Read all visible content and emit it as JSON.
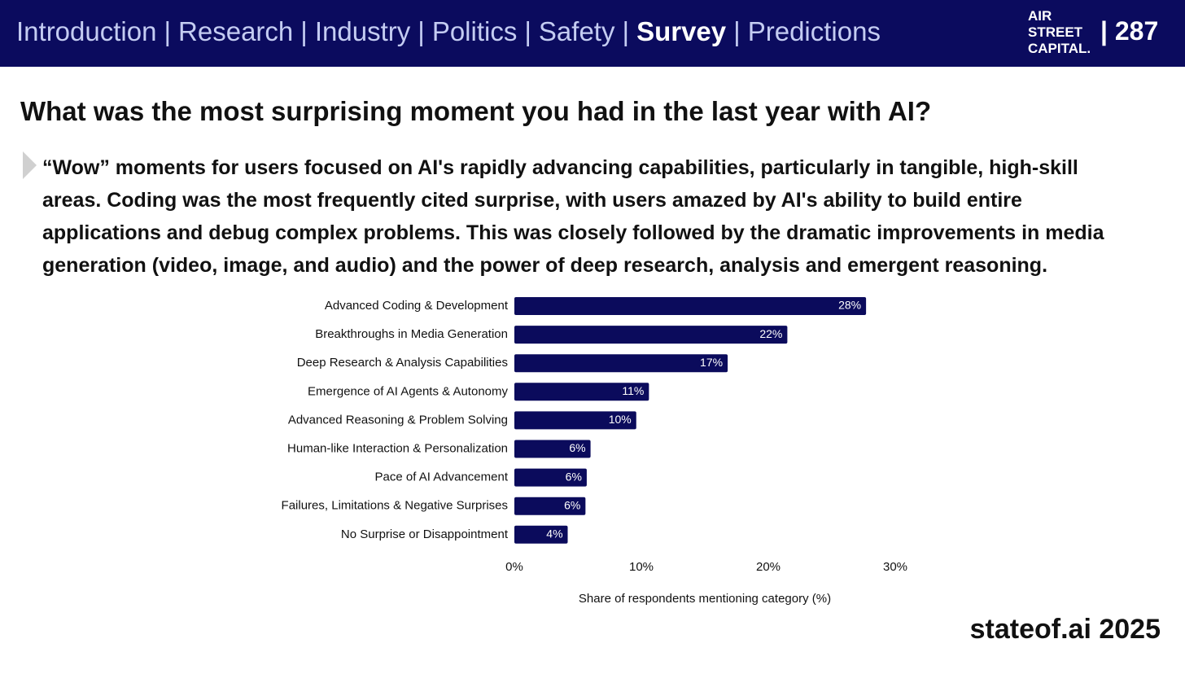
{
  "header": {
    "nav": [
      "Introduction",
      "Research",
      "Industry",
      "Politics",
      "Safety",
      "Survey",
      "Predictions"
    ],
    "nav_separator": "|",
    "nav_active": 5,
    "logo": [
      "AIR",
      "STREET",
      "CAPITAL."
    ],
    "page_number": "287"
  },
  "title": "What was the most surprising moment you had in the last year with AI?",
  "body": "“Wow” moments for users focused on AI's rapidly advancing capabilities, particularly in tangible, high-skill areas. Coding was the most frequently cited surprise, with users amazed by AI's ability to build entire applications and debug complex problems. This was closely followed by the dramatic improvements in media generation (video, image, and audio) and the power of deep research, analysis and emergent reasoning.",
  "chart_data": {
    "type": "hbar",
    "color": "#0b0b5c",
    "categories": [
      "Advanced Coding & Development",
      "Breakthroughs in Media Generation",
      "Deep Research & Analysis Capabilities",
      "Emergence of AI Agents & Autonomy",
      "Advanced Reasoning & Problem Solving",
      "Human-like Interaction & Personalization",
      "Pace of AI Advancement",
      "Failures, Limitations & Negative Surprises",
      "No Surprise or Disappointment"
    ],
    "values": [
      27.7,
      21.5,
      16.8,
      10.6,
      9.6,
      6.0,
      5.7,
      5.6,
      4.2
    ],
    "value_labels": [
      "28%",
      "22%",
      "17%",
      "11%",
      "10%",
      "6%",
      "6%",
      "6%",
      "4%"
    ],
    "xlim": [
      0,
      30
    ],
    "xticks": [
      {
        "value": 0,
        "label": "0%"
      },
      {
        "value": 10,
        "label": "10%"
      },
      {
        "value": 20,
        "label": "20%"
      },
      {
        "value": 30,
        "label": "30%"
      }
    ],
    "xlabel": "Share of respondents mentioning category (%)"
  },
  "footer": "stateof.ai 2025"
}
